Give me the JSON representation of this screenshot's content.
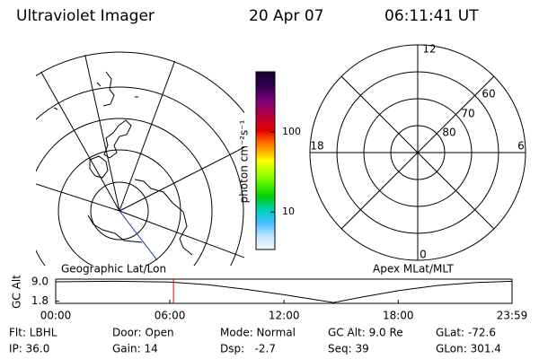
{
  "header": {
    "instrument": "Ultraviolet Imager",
    "date": "20 Apr 07",
    "time": "06:11:41 UT"
  },
  "colorbar": {
    "label": "photon cm⁻²s⁻¹",
    "log": true,
    "lim": [
      3.4,
      566
    ],
    "ticks": [
      100,
      10
    ]
  },
  "left_panel": {
    "label": "Geographic Lat/Lon"
  },
  "right_panel": {
    "label": "Apex MLat/MLT",
    "mlt_labels": [
      "12",
      "18",
      "6",
      "0"
    ],
    "lat_labels": [
      "60",
      "70",
      "80"
    ]
  },
  "altitude_plot": {
    "ylabel": "GC Alt",
    "ylim": [
      1.0,
      10.0
    ],
    "yticks": [
      {
        "value": 9.0,
        "label": "9.0"
      },
      {
        "value": 1.8,
        "label": "1.8"
      }
    ],
    "xlim": [
      0,
      23.983
    ],
    "xticks": [
      {
        "value": 0,
        "label": "00:00"
      },
      {
        "value": 6,
        "label": "06:00"
      },
      {
        "value": 12,
        "label": "12:00"
      },
      {
        "value": 18,
        "label": "18:00"
      },
      {
        "value": 23.983,
        "label": "23:59"
      }
    ],
    "x": [
      0,
      3,
      6,
      8,
      10,
      12,
      14.6,
      16,
      18,
      20,
      22,
      23.983
    ],
    "values": [
      9.0,
      9.2,
      8.9,
      7.9,
      6.2,
      4.2,
      1.3,
      3.2,
      5.7,
      7.6,
      8.7,
      9.2
    ],
    "marker_x": 6.19,
    "color": "#000000",
    "marker_color": "#e00000"
  },
  "info": {
    "rows": [
      [
        "Flt: LBHL",
        "Door: Open",
        "Mode: Normal",
        "GC Alt: 9.0 Re",
        "GLat: -72.6"
      ],
      [
        "IP: 36.0",
        "Gain: 14",
        "Dsp:   -2.7",
        "Seq: 39",
        "GLon: 301.4"
      ]
    ]
  }
}
